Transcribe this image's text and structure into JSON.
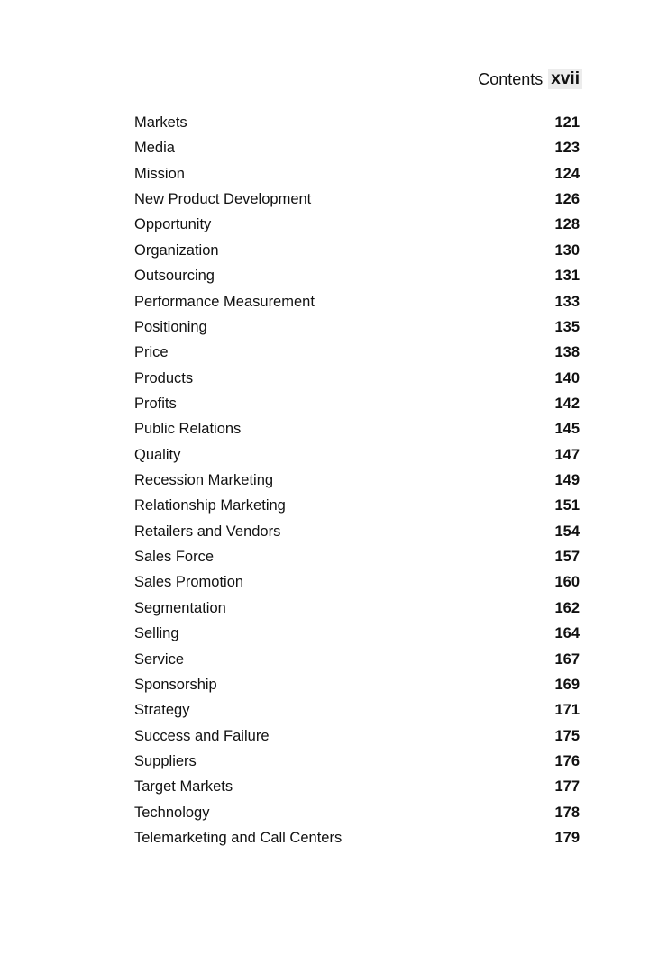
{
  "header": {
    "title": "Contents",
    "page_number": "xvii"
  },
  "entries": [
    {
      "title": "Markets",
      "page": "121"
    },
    {
      "title": "Media",
      "page": "123"
    },
    {
      "title": "Mission",
      "page": "124"
    },
    {
      "title": "New Product Development",
      "page": "126"
    },
    {
      "title": "Opportunity",
      "page": "128"
    },
    {
      "title": "Organization",
      "page": "130"
    },
    {
      "title": "Outsourcing",
      "page": "131"
    },
    {
      "title": "Performance Measurement",
      "page": "133"
    },
    {
      "title": "Positioning",
      "page": "135"
    },
    {
      "title": "Price",
      "page": "138"
    },
    {
      "title": "Products",
      "page": "140"
    },
    {
      "title": "Profits",
      "page": "142"
    },
    {
      "title": "Public Relations",
      "page": "145"
    },
    {
      "title": "Quality",
      "page": "147"
    },
    {
      "title": "Recession Marketing",
      "page": "149"
    },
    {
      "title": "Relationship Marketing",
      "page": "151"
    },
    {
      "title": "Retailers and Vendors",
      "page": "154"
    },
    {
      "title": "Sales Force",
      "page": "157"
    },
    {
      "title": "Sales Promotion",
      "page": "160"
    },
    {
      "title": "Segmentation",
      "page": "162"
    },
    {
      "title": "Selling",
      "page": "164"
    },
    {
      "title": "Service",
      "page": "167"
    },
    {
      "title": "Sponsorship",
      "page": "169"
    },
    {
      "title": "Strategy",
      "page": "171"
    },
    {
      "title": "Success and Failure",
      "page": "175"
    },
    {
      "title": "Suppliers",
      "page": "176"
    },
    {
      "title": "Target Markets",
      "page": "177"
    },
    {
      "title": "Technology",
      "page": "178"
    },
    {
      "title": "Telemarketing and Call Centers",
      "page": "179"
    }
  ]
}
